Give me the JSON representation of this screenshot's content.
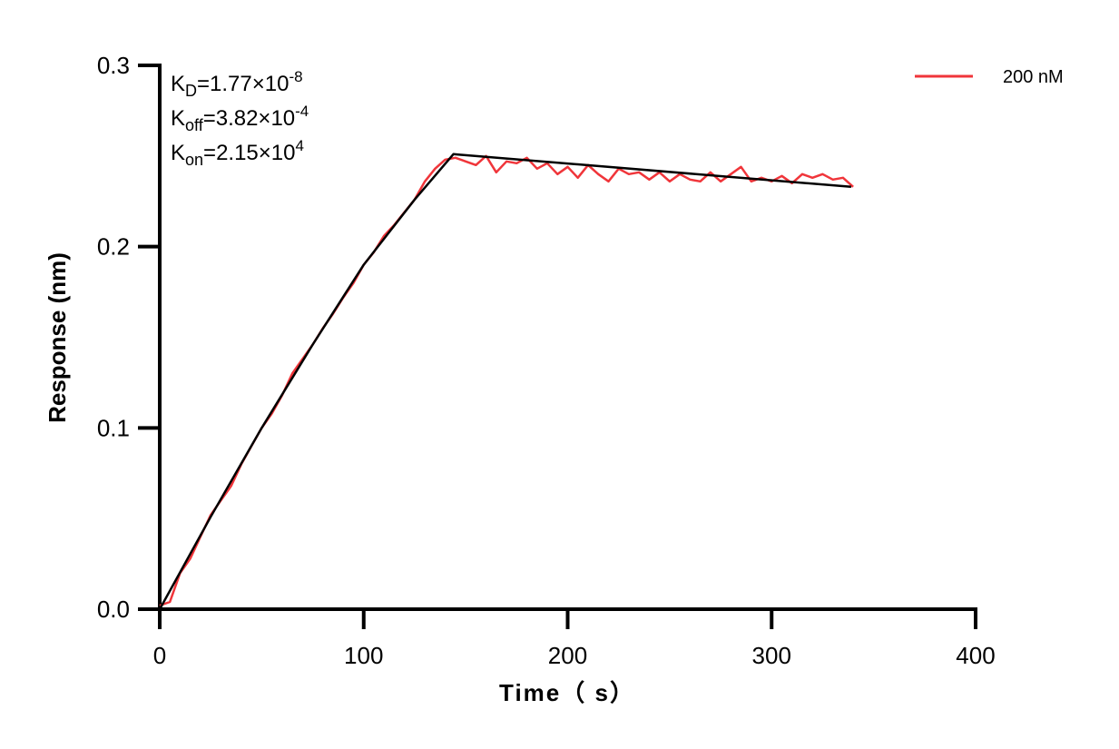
{
  "chart_data": {
    "type": "line",
    "title": "",
    "xlabel": "Time（ s）",
    "ylabel": "Response (nm)",
    "xlim": [
      0,
      400
    ],
    "ylim": [
      0,
      0.3
    ],
    "xticks": [
      "0",
      "100",
      "200",
      "300",
      "400"
    ],
    "yticks": [
      "0.0",
      "0.1",
      "0.2",
      "0.3"
    ],
    "grid": false,
    "legend_placement": "top-right",
    "annotations": [
      {
        "base": "K",
        "sub": "D",
        "text": "=1.77×10",
        "sup": "-8"
      },
      {
        "base": "K",
        "sub": "off",
        "text": "=3.82×10",
        "sup": "-4"
      },
      {
        "base": "K",
        "sub": "on",
        "text": "=2.15×10",
        "sup": "4"
      }
    ],
    "series": [
      {
        "name": "200 nM",
        "color": "#f0353a",
        "x": [
          0,
          5,
          10,
          15,
          20,
          25,
          30,
          35,
          40,
          45,
          50,
          55,
          60,
          65,
          70,
          75,
          80,
          85,
          90,
          95,
          100,
          105,
          110,
          115,
          120,
          125,
          130,
          135,
          140,
          145,
          150,
          155,
          160,
          165,
          170,
          175,
          180,
          185,
          190,
          195,
          200,
          205,
          210,
          215,
          220,
          225,
          230,
          235,
          240,
          245,
          250,
          255,
          260,
          265,
          270,
          275,
          280,
          285,
          290,
          295,
          300,
          305,
          310,
          315,
          320,
          325,
          330,
          335,
          340
        ],
        "y": [
          0.002,
          0.004,
          0.02,
          0.028,
          0.04,
          0.052,
          0.06,
          0.068,
          0.08,
          0.09,
          0.1,
          0.108,
          0.118,
          0.13,
          0.138,
          0.146,
          0.155,
          0.163,
          0.172,
          0.18,
          0.19,
          0.197,
          0.206,
          0.212,
          0.219,
          0.226,
          0.236,
          0.243,
          0.248,
          0.249,
          0.247,
          0.245,
          0.25,
          0.241,
          0.247,
          0.246,
          0.249,
          0.243,
          0.246,
          0.24,
          0.244,
          0.238,
          0.245,
          0.24,
          0.236,
          0.243,
          0.24,
          0.241,
          0.237,
          0.241,
          0.236,
          0.24,
          0.237,
          0.236,
          0.241,
          0.236,
          0.24,
          0.244,
          0.236,
          0.238,
          0.236,
          0.239,
          0.235,
          0.24,
          0.238,
          0.24,
          0.237,
          0.238,
          0.233
        ]
      },
      {
        "name": "",
        "color": "#000000",
        "role": "fit",
        "x": [
          0,
          25,
          50,
          75,
          100,
          125,
          144,
          339
        ],
        "y": [
          0,
          0.051,
          0.1,
          0.146,
          0.19,
          0.226,
          0.251,
          0.233
        ]
      }
    ]
  }
}
